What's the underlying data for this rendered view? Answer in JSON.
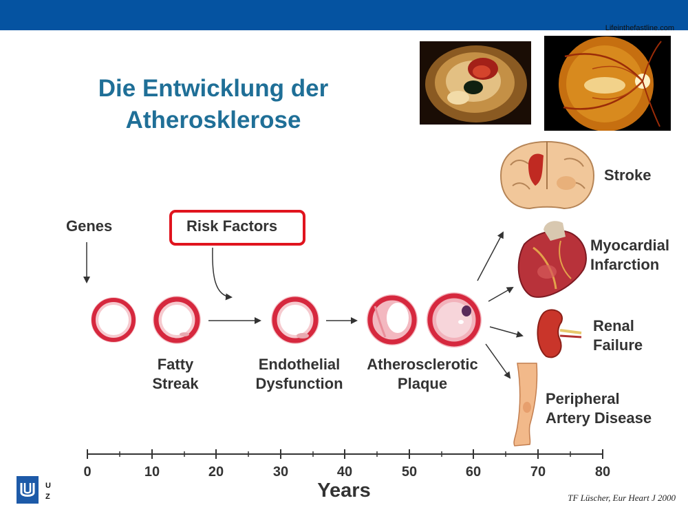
{
  "header": {
    "source": "Lifeinthefastline.com"
  },
  "title": {
    "line1": "Die Entwicklung der",
    "line2": "Atherosklerose"
  },
  "labels": {
    "genes": "Genes",
    "risk_factors": "Risk Factors",
    "fatty_streak_1": "Fatty",
    "fatty_streak_2": "Streak",
    "endothelial_1": "Endothelial",
    "endothelial_2": "Dysfunction",
    "plaque_1": "Atherosclerotic",
    "plaque_2": "Plaque"
  },
  "outcomes": {
    "stroke": "Stroke",
    "mi_1": "Myocardial",
    "mi_2": "Infarction",
    "renal_1": "Renal",
    "renal_2": "Failure",
    "pad_1": "Peripheral",
    "pad_2": "Artery Disease"
  },
  "axis": {
    "ticks": [
      "0",
      "10",
      "20",
      "30",
      "40",
      "50",
      "60",
      "70",
      "80"
    ],
    "label": "Years"
  },
  "citation": "TF Lüscher, Eur Heart J 2000",
  "logo": {
    "text_1": "U",
    "text_2": "Z"
  },
  "colors": {
    "topbar": "#0553a1",
    "title": "#1f6f97",
    "highlight": "#e0141e",
    "vessel": "#d6283e"
  }
}
